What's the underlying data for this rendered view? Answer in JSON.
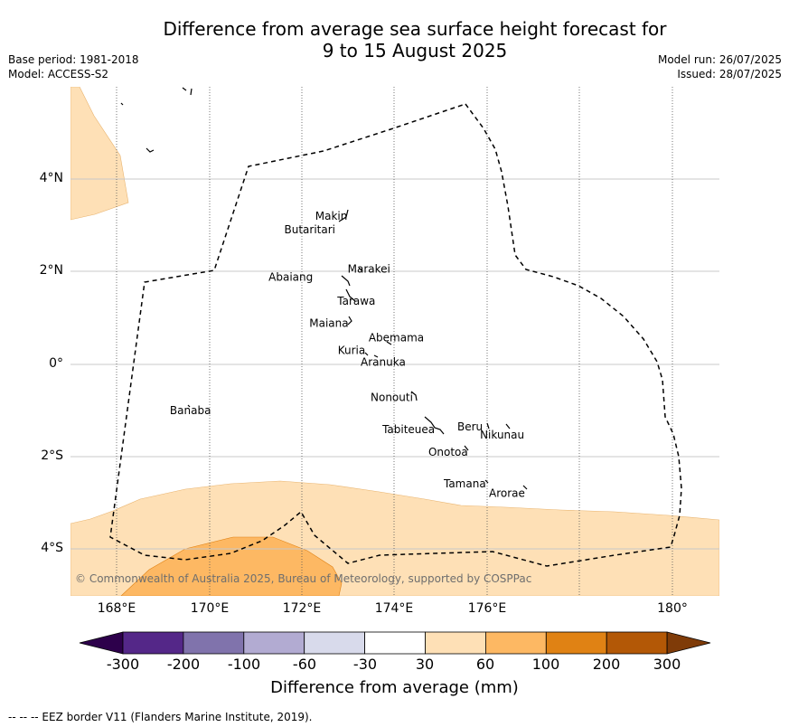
{
  "title": {
    "line1": "Difference from average sea surface height forecast for",
    "line2": "9 to 15 August 2025"
  },
  "meta_left": {
    "base_period": "Base period: 1981-2018",
    "model": "Model: ACCESS-S2"
  },
  "meta_right": {
    "model_run": "Model run: 26/07/2025",
    "issued": "Issued: 28/07/2025"
  },
  "map": {
    "lat_ticks": [
      "4°N",
      "2°N",
      "0°",
      "2°S",
      "4°S"
    ],
    "lon_ticks": [
      "168°E",
      "170°E",
      "172°E",
      "174°E",
      "176°E",
      "180°"
    ],
    "copyright": "© Commonwealth of Australia 2025, Bureau of Meteorology, supported by COSPPac",
    "islands": [
      {
        "name": "Makin",
        "lon": 172.99,
        "lat": 3.07
      },
      {
        "name": "Butaritari",
        "lon": 172.79,
        "lat": 3.07
      },
      {
        "name": "Marakei",
        "lon": 173.3,
        "lat": 2.0
      },
      {
        "name": "Abaiang",
        "lon": 172.92,
        "lat": 1.85
      },
      {
        "name": "Tarawa",
        "lon": 173.0,
        "lat": 1.45
      },
      {
        "name": "Maiana",
        "lon": 173.0,
        "lat": 0.93
      },
      {
        "name": "Abemama",
        "lon": 173.85,
        "lat": 0.4
      },
      {
        "name": "Kuria",
        "lon": 173.4,
        "lat": 0.22
      },
      {
        "name": "Aranuka",
        "lon": 173.6,
        "lat": 0.17
      },
      {
        "name": "Nonouti",
        "lon": 174.4,
        "lat": -0.65
      },
      {
        "name": "Banaba",
        "lon": 169.54,
        "lat": -0.86
      },
      {
        "name": "Tabiteuea",
        "lon": 174.85,
        "lat": -1.35
      },
      {
        "name": "Beru",
        "lon": 176.0,
        "lat": -1.33
      },
      {
        "name": "Nikunau",
        "lon": 176.45,
        "lat": -1.35
      },
      {
        "name": "Onotoa",
        "lon": 175.55,
        "lat": -1.8
      },
      {
        "name": "Tamana",
        "lon": 175.98,
        "lat": -2.5
      },
      {
        "name": "Arorae",
        "lon": 176.82,
        "lat": -2.65
      }
    ]
  },
  "colorbar": {
    "labels": [
      "-300",
      "-200",
      "-100",
      "-60",
      "-30",
      "30",
      "60",
      "100",
      "200",
      "300"
    ],
    "colors": [
      "#2d004b",
      "#542788",
      "#8073ac",
      "#b2abd2",
      "#d8daeb",
      "#ffffff",
      "#fee0b6",
      "#fdb863",
      "#e08214",
      "#b35806",
      "#7f3b08"
    ],
    "title": "Difference from average (mm)"
  },
  "footnote": "--  --  -- EEZ border V11 (Flanders Marine Institute, 2019)."
}
